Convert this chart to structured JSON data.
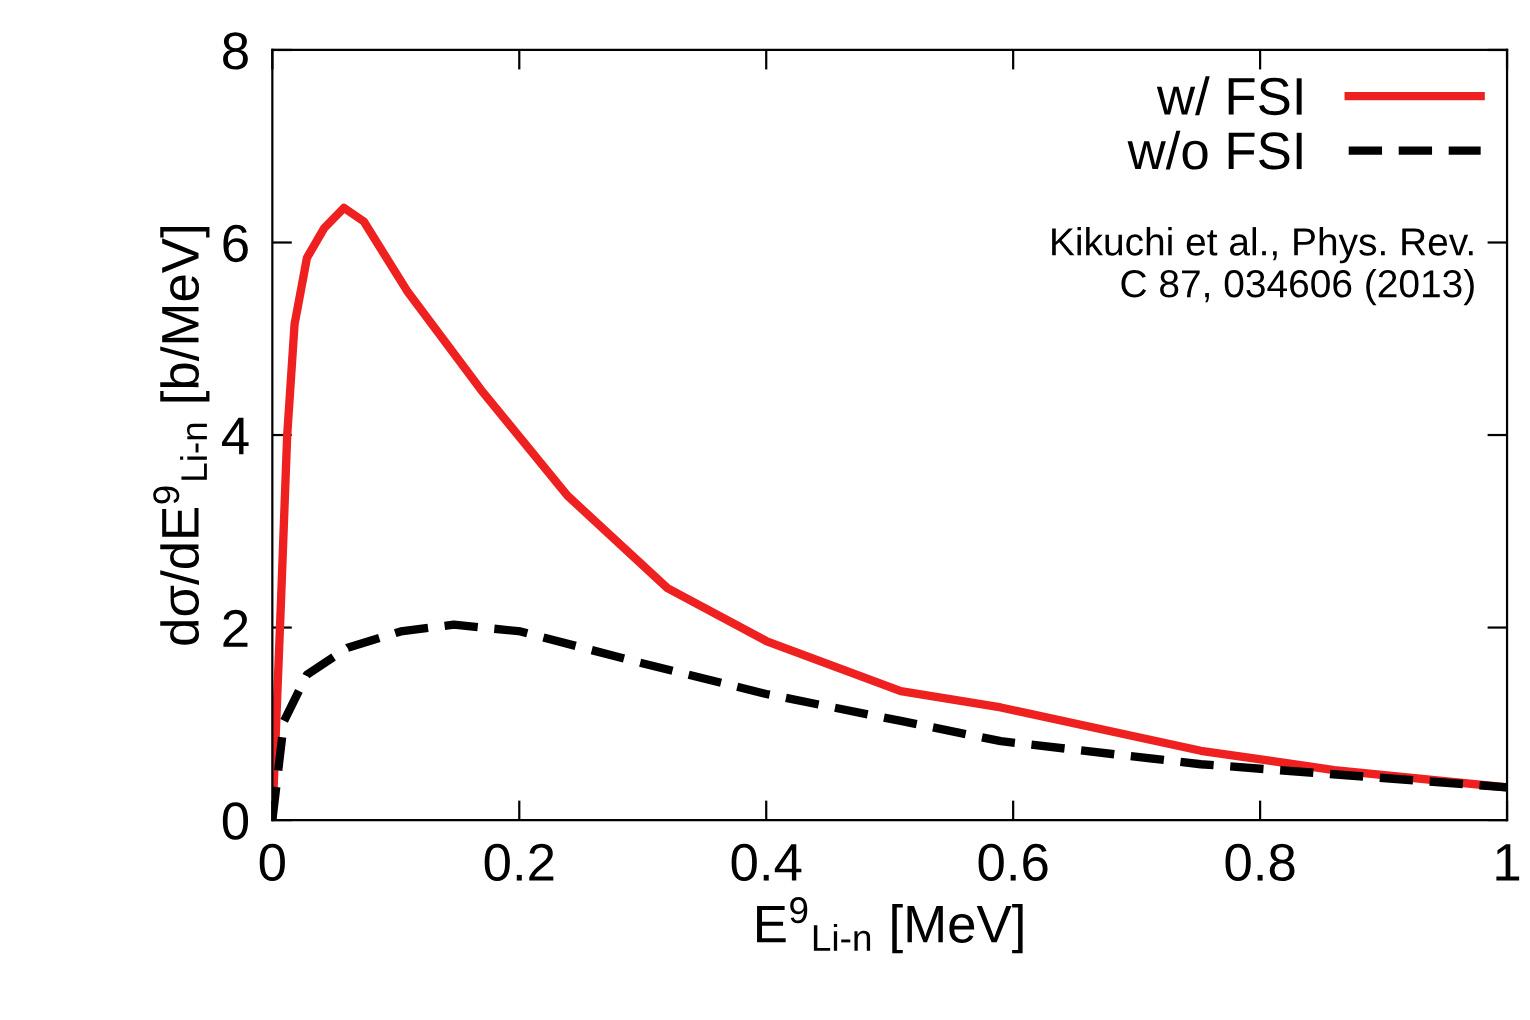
{
  "chart_data": {
    "type": "line",
    "xlabel": "E$^{9}$$_{Li‐n}$ [MeV]",
    "ylabel": "dσ/dE$^{9}$$_{Li‐n}$ [b/MeV]",
    "xlim": [
      0,
      1
    ],
    "ylim": [
      0,
      8
    ],
    "xticks": [
      0,
      0.2,
      0.4,
      0.6,
      0.8,
      1
    ],
    "yticks": [
      0,
      2,
      4,
      6,
      8
    ],
    "legend": "top right",
    "grid": false,
    "series": [
      {
        "name": "w/ FSI",
        "color": "#ee2020",
        "line_style": "solid",
        "x": [
          0,
          0.007,
          0.012,
          0.018,
          0.028,
          0.042,
          0.058,
          0.074,
          0.109,
          0.169,
          0.239,
          0.32,
          0.4,
          0.509,
          0.59,
          0.752,
          0.86,
          1.0
        ],
        "values": [
          0,
          2.27,
          3.99,
          5.15,
          5.84,
          6.15,
          6.36,
          6.22,
          5.5,
          4.47,
          3.37,
          2.41,
          1.86,
          1.34,
          1.17,
          0.72,
          0.52,
          0.34
        ]
      },
      {
        "name": "w/o FSI",
        "color": "#000000",
        "line_style": "dashed",
        "x": [
          0,
          0.0095,
          0.028,
          0.061,
          0.104,
          0.147,
          0.201,
          0.293,
          0.4,
          0.509,
          0.59,
          0.752,
          1.0
        ],
        "values": [
          0,
          1.03,
          1.51,
          1.79,
          1.96,
          2.03,
          1.96,
          1.65,
          1.31,
          1.03,
          0.82,
          0.58,
          0.34
        ]
      }
    ],
    "annotations": [
      {
        "text": "Kikuchi et al., Phys. Rev.\nC 87, 034606 (2013)"
      }
    ]
  }
}
